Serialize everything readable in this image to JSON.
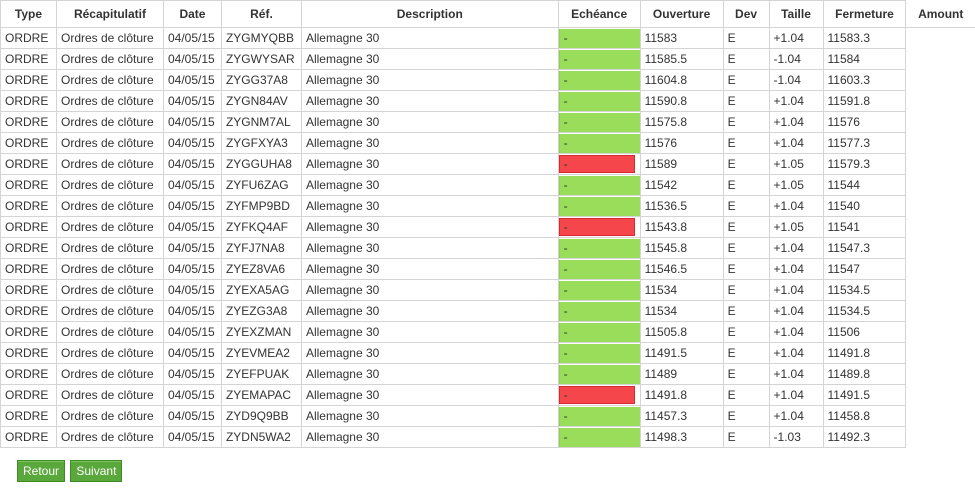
{
  "columns": [
    "Type",
    "Récapitulatif",
    "Date",
    "Réf.",
    "Description",
    "Echéance",
    "Ouverture",
    "Dev",
    "Taille",
    "Fermeture",
    "Amount"
  ],
  "colors": {
    "green": "#99dd5a",
    "red": "#f5474b",
    "button": "#5aa83c"
  },
  "rows": [
    {
      "type": "ORDRE",
      "recap": "Ordres de clôture",
      "date": "04/05/15",
      "ref": "ZYGMYQBB",
      "desc": "Allemagne 30",
      "ech": "-",
      "status": "green",
      "ouv": "11583",
      "dev": "E",
      "taille": "+1.04",
      "ferm": "11583.3"
    },
    {
      "type": "ORDRE",
      "recap": "Ordres de clôture",
      "date": "04/05/15",
      "ref": "ZYGWYSAR",
      "desc": "Allemagne 30",
      "ech": "-",
      "status": "green",
      "ouv": "11585.5",
      "dev": "E",
      "taille": "-1.04",
      "ferm": "11584"
    },
    {
      "type": "ORDRE",
      "recap": "Ordres de clôture",
      "date": "04/05/15",
      "ref": "ZYGG37A8",
      "desc": "Allemagne 30",
      "ech": "-",
      "status": "green",
      "ouv": "11604.8",
      "dev": "E",
      "taille": "-1.04",
      "ferm": "11603.3"
    },
    {
      "type": "ORDRE",
      "recap": "Ordres de clôture",
      "date": "04/05/15",
      "ref": "ZYGN84AV",
      "desc": "Allemagne 30",
      "ech": "-",
      "status": "green",
      "ouv": "11590.8",
      "dev": "E",
      "taille": "+1.04",
      "ferm": "11591.8"
    },
    {
      "type": "ORDRE",
      "recap": "Ordres de clôture",
      "date": "04/05/15",
      "ref": "ZYGNM7AL",
      "desc": "Allemagne 30",
      "ech": "-",
      "status": "green",
      "ouv": "11575.8",
      "dev": "E",
      "taille": "+1.04",
      "ferm": "11576"
    },
    {
      "type": "ORDRE",
      "recap": "Ordres de clôture",
      "date": "04/05/15",
      "ref": "ZYGFXYA3",
      "desc": "Allemagne 30",
      "ech": "-",
      "status": "green",
      "ouv": "11576",
      "dev": "E",
      "taille": "+1.04",
      "ferm": "11577.3"
    },
    {
      "type": "ORDRE",
      "recap": "Ordres de clôture",
      "date": "04/05/15",
      "ref": "ZYGGUHA8",
      "desc": "Allemagne 30",
      "ech": "-",
      "status": "red",
      "ouv": "11589",
      "dev": "E",
      "taille": "+1.05",
      "ferm": "11579.3"
    },
    {
      "type": "ORDRE",
      "recap": "Ordres de clôture",
      "date": "04/05/15",
      "ref": "ZYFU6ZAG",
      "desc": "Allemagne 30",
      "ech": "-",
      "status": "green",
      "ouv": "11542",
      "dev": "E",
      "taille": "+1.05",
      "ferm": "11544"
    },
    {
      "type": "ORDRE",
      "recap": "Ordres de clôture",
      "date": "04/05/15",
      "ref": "ZYFMP9BD",
      "desc": "Allemagne 30",
      "ech": "-",
      "status": "green",
      "ouv": "11536.5",
      "dev": "E",
      "taille": "+1.04",
      "ferm": "11540"
    },
    {
      "type": "ORDRE",
      "recap": "Ordres de clôture",
      "date": "04/05/15",
      "ref": "ZYFKQ4AF",
      "desc": "Allemagne 30",
      "ech": "-",
      "status": "red",
      "ouv": "11543.8",
      "dev": "E",
      "taille": "+1.05",
      "ferm": "11541"
    },
    {
      "type": "ORDRE",
      "recap": "Ordres de clôture",
      "date": "04/05/15",
      "ref": "ZYFJ7NA8",
      "desc": "Allemagne 30",
      "ech": "-",
      "status": "green",
      "ouv": "11545.8",
      "dev": "E",
      "taille": "+1.04",
      "ferm": "11547.3"
    },
    {
      "type": "ORDRE",
      "recap": "Ordres de clôture",
      "date": "04/05/15",
      "ref": "ZYEZ8VA6",
      "desc": "Allemagne 30",
      "ech": "-",
      "status": "green",
      "ouv": "11546.5",
      "dev": "E",
      "taille": "+1.04",
      "ferm": "11547"
    },
    {
      "type": "ORDRE",
      "recap": "Ordres de clôture",
      "date": "04/05/15",
      "ref": "ZYEXA5AG",
      "desc": "Allemagne 30",
      "ech": "-",
      "status": "green",
      "ouv": "11534",
      "dev": "E",
      "taille": "+1.04",
      "ferm": "11534.5"
    },
    {
      "type": "ORDRE",
      "recap": "Ordres de clôture",
      "date": "04/05/15",
      "ref": "ZYEZG3A8",
      "desc": "Allemagne 30",
      "ech": "-",
      "status": "green",
      "ouv": "11534",
      "dev": "E",
      "taille": "+1.04",
      "ferm": "11534.5"
    },
    {
      "type": "ORDRE",
      "recap": "Ordres de clôture",
      "date": "04/05/15",
      "ref": "ZYEXZMAN",
      "desc": "Allemagne 30",
      "ech": "-",
      "status": "green",
      "ouv": "11505.8",
      "dev": "E",
      "taille": "+1.04",
      "ferm": "11506"
    },
    {
      "type": "ORDRE",
      "recap": "Ordres de clôture",
      "date": "04/05/15",
      "ref": "ZYEVMEA2",
      "desc": "Allemagne 30",
      "ech": "-",
      "status": "green",
      "ouv": "11491.5",
      "dev": "E",
      "taille": "+1.04",
      "ferm": "11491.8"
    },
    {
      "type": "ORDRE",
      "recap": "Ordres de clôture",
      "date": "04/05/15",
      "ref": "ZYEFPUAK",
      "desc": "Allemagne 30",
      "ech": "-",
      "status": "green",
      "ouv": "11489",
      "dev": "E",
      "taille": "+1.04",
      "ferm": "11489.8"
    },
    {
      "type": "ORDRE",
      "recap": "Ordres de clôture",
      "date": "04/05/15",
      "ref": "ZYEMAPAC",
      "desc": "Allemagne 30",
      "ech": "-",
      "status": "red",
      "ouv": "11491.8",
      "dev": "E",
      "taille": "+1.04",
      "ferm": "11491.5"
    },
    {
      "type": "ORDRE",
      "recap": "Ordres de clôture",
      "date": "04/05/15",
      "ref": "ZYD9Q9BB",
      "desc": "Allemagne 30",
      "ech": "-",
      "status": "green",
      "ouv": "11457.3",
      "dev": "E",
      "taille": "+1.04",
      "ferm": "11458.8"
    },
    {
      "type": "ORDRE",
      "recap": "Ordres de clôture",
      "date": "04/05/15",
      "ref": "ZYDN5WA2",
      "desc": "Allemagne 30",
      "ech": "-",
      "status": "green",
      "ouv": "11498.3",
      "dev": "E",
      "taille": "-1.03",
      "ferm": "11492.3"
    }
  ],
  "buttons": {
    "back": "Retour",
    "next": "Suivant"
  }
}
